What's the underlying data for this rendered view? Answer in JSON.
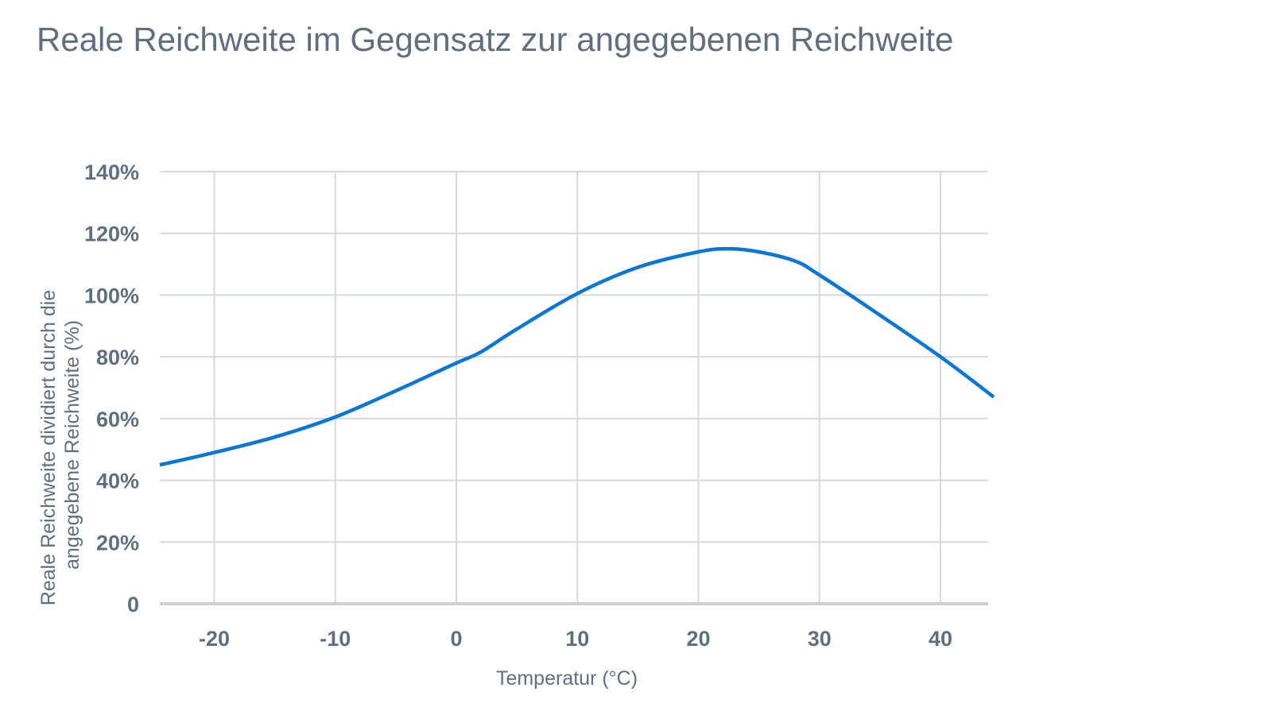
{
  "chart_data": {
    "type": "line",
    "title": "Reale Reichweite im Gegensatz zur angegebenen Reichweite",
    "xlabel": "Temperatur (°C)",
    "ylabel_lines": [
      "Reale Reichweite dividiert durch die",
      "angegebene Reichweite (%)"
    ],
    "xlim": [
      -24.5,
      44.4
    ],
    "ylim": [
      0,
      140
    ],
    "x_ticks": [
      -20,
      -10,
      0,
      10,
      20,
      30,
      40
    ],
    "x_tick_labels": [
      "-20",
      "-10",
      "0",
      "10",
      "20",
      "30",
      "40"
    ],
    "y_ticks": [
      0,
      20,
      40,
      60,
      80,
      100,
      120,
      140
    ],
    "y_tick_labels": [
      "0",
      "20%",
      "40%",
      "60%",
      "80%",
      "100%",
      "120%",
      "140%"
    ],
    "grid": true,
    "legend": "none",
    "series": [
      {
        "color": "#0a77d5",
        "x": [
          -24.5,
          -20,
          -15,
          -10,
          -5,
          0,
          2,
          5,
          10,
          15,
          20,
          22.5,
          25,
          28,
          30,
          35,
          40,
          44.4
        ],
        "y": [
          45,
          49,
          54,
          60.5,
          69,
          78,
          81.5,
          89,
          100.5,
          109,
          114,
          115,
          114,
          111,
          106.5,
          93.5,
          80,
          67
        ]
      }
    ]
  }
}
